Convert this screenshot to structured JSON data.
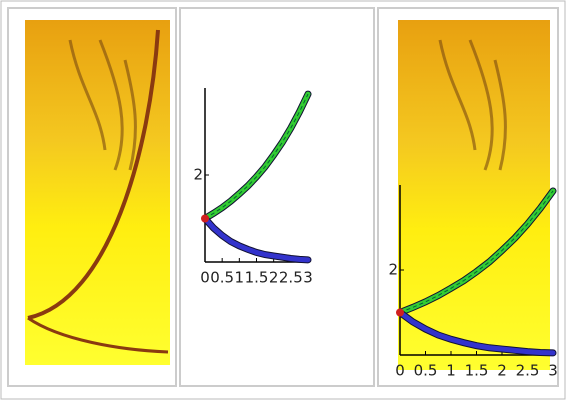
{
  "chart_data": [
    {
      "type": "line",
      "x": [
        0,
        0.25,
        0.5,
        0.75,
        1,
        1.25,
        1.5,
        1.75,
        2,
        2.25,
        2.5,
        2.75,
        3
      ],
      "series": [
        {
          "color": "#33cc33",
          "values": [
            1,
            1.12,
            1.25,
            1.4,
            1.57,
            1.75,
            1.96,
            2.19,
            2.46,
            2.75,
            3.08,
            3.45,
            3.86
          ]
        },
        {
          "color": "#3333cc",
          "values": [
            1,
            0.78,
            0.61,
            0.47,
            0.37,
            0.29,
            0.22,
            0.17,
            0.14,
            0.11,
            0.08,
            0.06,
            0.05
          ]
        }
      ],
      "xlim": [
        0,
        3
      ],
      "ylim": [
        0,
        4
      ],
      "xticks": [
        0,
        0.5,
        1,
        1.5,
        2,
        2.5,
        3
      ],
      "yticks": [
        2
      ]
    },
    {
      "type": "line",
      "x": [
        0,
        0.25,
        0.5,
        0.75,
        1,
        1.25,
        1.5,
        1.75,
        2,
        2.25,
        2.5,
        2.75,
        3
      ],
      "series": [
        {
          "color": "#33cc33",
          "values": [
            1,
            1.12,
            1.25,
            1.4,
            1.57,
            1.75,
            1.96,
            2.19,
            2.46,
            2.75,
            3.08,
            3.45,
            3.86
          ]
        },
        {
          "color": "#3333cc",
          "values": [
            1,
            0.78,
            0.61,
            0.47,
            0.37,
            0.29,
            0.22,
            0.17,
            0.14,
            0.11,
            0.08,
            0.06,
            0.05
          ]
        }
      ],
      "xlim": [
        0,
        3
      ],
      "ylim": [
        0,
        4
      ],
      "xticks": [
        0,
        0.5,
        1,
        1.5,
        2,
        2.5,
        3
      ],
      "yticks": [
        2
      ]
    }
  ]
}
